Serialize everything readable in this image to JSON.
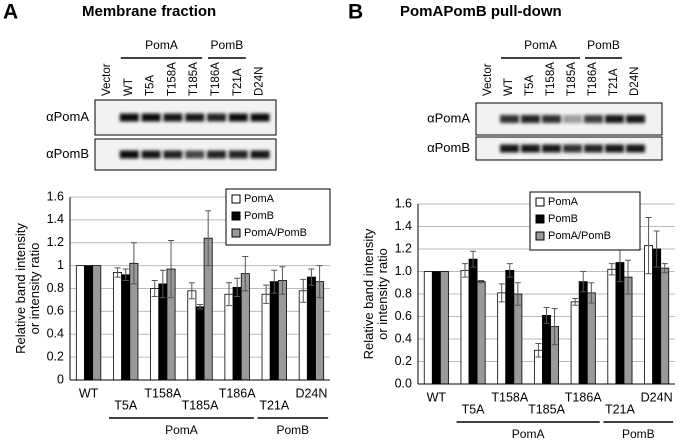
{
  "chart_data": [
    {
      "type": "bar",
      "panel": "A",
      "title": "Membrane fraction",
      "lane_labels": [
        "Vector",
        "WT",
        "T5A",
        "T158A",
        "T185A",
        "T186A",
        "T21A",
        "D24N"
      ],
      "lane_groups": [
        "PomA",
        "PomB"
      ],
      "blot_rows": [
        "αPomA",
        "αPomB"
      ],
      "ylabel": [
        "Relative band intensity",
        "or intensity ratio"
      ],
      "categories": [
        "WT",
        "T5A",
        "T158A",
        "T185A",
        "T186A",
        "T21A",
        "D24N"
      ],
      "group_labels": [
        "PomA",
        "PomB"
      ],
      "series": [
        {
          "name": "PomA",
          "color": "#ffffff",
          "values": [
            1,
            0.94,
            0.8,
            0.78,
            0.75,
            0.75,
            0.78
          ],
          "errors": [
            0,
            0.04,
            0.07,
            0.07,
            0.1,
            0.08,
            0.1
          ]
        },
        {
          "name": "PomB",
          "color": "#000000",
          "values": [
            1,
            0.92,
            0.84,
            0.64,
            0.81,
            0.86,
            0.9
          ],
          "errors": [
            0,
            0.05,
            0.12,
            0.02,
            0.08,
            0.1,
            0.07
          ]
        },
        {
          "name": "PomA/PomB",
          "color": "#999999",
          "values": [
            1,
            1.02,
            0.97,
            1.24,
            0.93,
            0.87,
            0.86
          ],
          "errors": [
            0,
            0.18,
            0.25,
            0.24,
            0.15,
            0.12,
            0.14
          ]
        }
      ],
      "ylim": [
        0,
        1.6
      ],
      "yticks": [
        0,
        0.2,
        0.4,
        0.6,
        0.8,
        1,
        1.2,
        1.4,
        1.6
      ],
      "grid": true,
      "legend": "top-right"
    },
    {
      "type": "bar",
      "panel": "B",
      "title": "PomAPomB pull-down",
      "lane_labels": [
        "Vector",
        "WT",
        "T5A",
        "T158A",
        "T185A",
        "T186A",
        "T21A",
        "D24N"
      ],
      "lane_groups": [
        "PomA",
        "PomB"
      ],
      "blot_rows": [
        "αPomA",
        "αPomB"
      ],
      "ylabel": [
        "Relative band intensity",
        "or intensity ratio"
      ],
      "categories": [
        "WT",
        "T5A",
        "T158A",
        "T185A",
        "T186A",
        "T21A",
        "D24N"
      ],
      "group_labels": [
        "PomA",
        "PomB"
      ],
      "series": [
        {
          "name": "PomA",
          "color": "#ffffff",
          "values": [
            1,
            1.01,
            0.81,
            0.3,
            0.73,
            1.02,
            1.23
          ],
          "errors": [
            0,
            0.06,
            0.08,
            0.06,
            0.03,
            0.05,
            0.25
          ]
        },
        {
          "name": "PomB",
          "color": "#000000",
          "values": [
            1,
            1.11,
            1.01,
            0.61,
            0.91,
            1.08,
            1.2
          ],
          "errors": [
            0,
            0.07,
            0.06,
            0.07,
            0.09,
            0.17,
            0.16
          ]
        },
        {
          "name": "PomA/PomB",
          "color": "#999999",
          "values": [
            1,
            0.91,
            0.8,
            0.51,
            0.81,
            0.95,
            1.03
          ],
          "errors": [
            0,
            0.01,
            0.1,
            0.16,
            0.09,
            0.15,
            0.04
          ]
        }
      ],
      "ylim": [
        0,
        1.6
      ],
      "yticks": [
        {
          "value": 0,
          "label": "0.0"
        },
        0.2,
        0.4,
        0.6,
        0.8,
        {
          "value": 1,
          "label": "1.0"
        },
        1.2,
        1.4,
        1.6
      ],
      "grid": true,
      "legend": "top-right"
    }
  ]
}
